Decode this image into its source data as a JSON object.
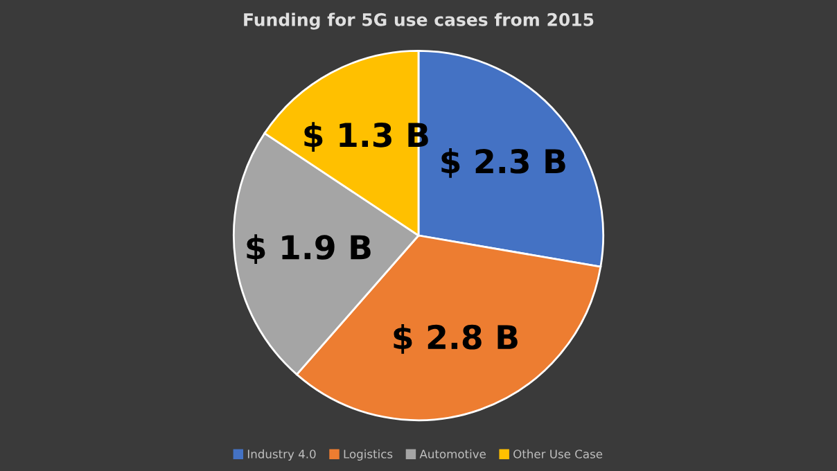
{
  "chart_data": {
    "type": "pie",
    "title": "Funding for 5G use cases from 2015",
    "categories": [
      "Industry 4.0",
      "Logistics",
      "Automotive",
      "Other Use Case"
    ],
    "values": [
      2.3,
      2.8,
      1.9,
      1.3
    ],
    "value_labels": [
      "$ 2.3 B",
      "$ 2.8 B",
      "$ 1.9 B",
      "$ 1.3 B"
    ],
    "colors": [
      "#4472c4",
      "#ed7d31",
      "#a5a5a5",
      "#ffc000"
    ],
    "legend": "bottom"
  }
}
